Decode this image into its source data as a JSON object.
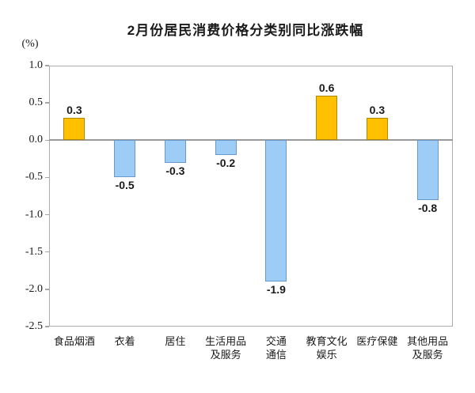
{
  "chart_data": {
    "type": "bar",
    "title": "2月份居民消费价格分类别同比涨跌幅",
    "unit_label": "(%)",
    "ylim": [
      -2.5,
      1.0
    ],
    "ytick_labels": [
      "1.0",
      "0.5",
      "0.0",
      "-0.5",
      "-1.0",
      "-1.5",
      "-2.0",
      "-2.5"
    ],
    "grid": false,
    "legend": "none",
    "categories": [
      {
        "key": "food-tobacco-alcohol",
        "label": "食品烟酒",
        "lines": [
          "食品烟酒"
        ]
      },
      {
        "key": "clothing",
        "label": "衣着",
        "lines": [
          "衣着"
        ]
      },
      {
        "key": "housing",
        "label": "居住",
        "lines": [
          "居住"
        ]
      },
      {
        "key": "daily-goods-services",
        "label": "生活用品及服务",
        "lines": [
          "生活用品",
          "及服务"
        ]
      },
      {
        "key": "transport-communication",
        "label": "交通通信",
        "lines": [
          "交通",
          "通信"
        ]
      },
      {
        "key": "education-culture-entertainment",
        "label": "教育文化娱乐",
        "lines": [
          "教育文化",
          "娱乐"
        ]
      },
      {
        "key": "healthcare",
        "label": "医疗保健",
        "lines": [
          "医疗保健"
        ]
      },
      {
        "key": "other-goods-services",
        "label": "其他用品及服务",
        "lines": [
          "其他用品",
          "及服务"
        ]
      }
    ],
    "values": [
      0.3,
      -0.5,
      -0.3,
      -0.2,
      -1.9,
      0.6,
      0.3,
      -0.8
    ],
    "value_labels": [
      "0.3",
      "-0.5",
      "-0.3",
      "-0.2",
      "-1.9",
      "0.6",
      "0.3",
      "-0.8"
    ],
    "colors": {
      "positive_bar": "#FFC000",
      "positive_bar_border": "#B38600",
      "negative_bar": "#9DCDF7",
      "negative_bar_border": "#6699CC",
      "axis_line": "#999999",
      "plot_border": "#A6A6A6",
      "text": "#1A1A1A"
    }
  }
}
